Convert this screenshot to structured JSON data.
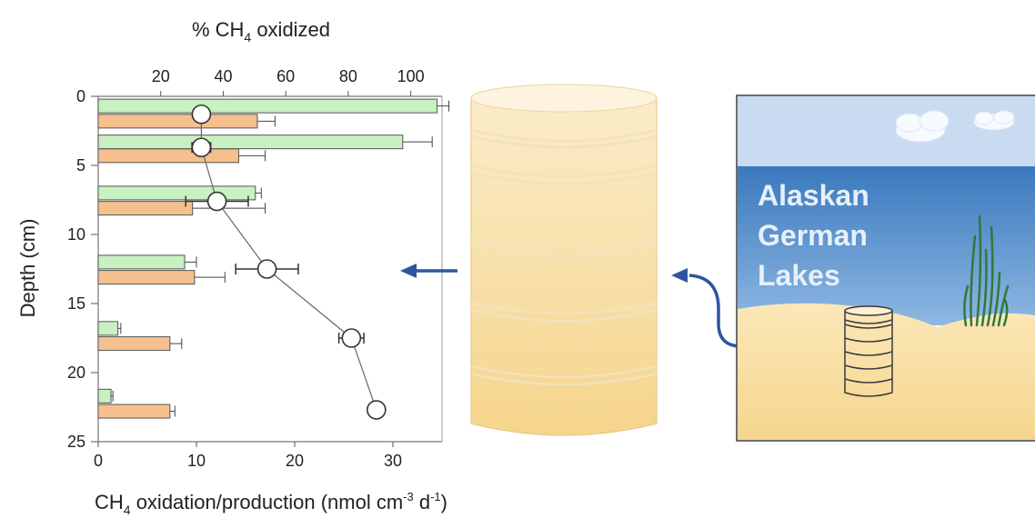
{
  "chart_data": {
    "type": "bar",
    "orientation": "horizontal",
    "top_axis_title_prefix": "% CH",
    "top_axis_title_sub": "4",
    "top_axis_title_suffix": " oxidized",
    "bottom_axis_title_prefix": "CH",
    "bottom_axis_title_sub": "4",
    "bottom_axis_title_mid": " oxidation/production (nmol cm",
    "bottom_axis_title_sup1": "-3",
    "bottom_axis_title_mid2": " d",
    "bottom_axis_title_sup2": "-1",
    "bottom_axis_title_end": ")",
    "ylabel": "Depth (cm)",
    "xlim": [
      0,
      35
    ],
    "ylim": [
      0,
      25
    ],
    "top_xlim": [
      0,
      110
    ],
    "x_ticks": [
      0,
      10,
      20,
      30
    ],
    "top_x_ticks": [
      20,
      40,
      60,
      80,
      100
    ],
    "y_ticks": [
      0,
      5,
      10,
      15,
      20,
      25
    ],
    "series": [
      {
        "color": "#c8f0c0",
        "points": [
          {
            "depth": 0.7,
            "value": 34.5,
            "err": 1.2
          },
          {
            "depth": 3.3,
            "value": 31.0,
            "err": 3.0
          },
          {
            "depth": 7.0,
            "value": 16.0,
            "err": 0.6
          },
          {
            "depth": 12.0,
            "value": 8.8,
            "err": 1.2
          },
          {
            "depth": 16.8,
            "value": 2.0,
            "err": 0.3
          },
          {
            "depth": 21.7,
            "value": 1.3,
            "err": 0.2
          }
        ]
      },
      {
        "color": "#f5c08e",
        "points": [
          {
            "depth": 1.8,
            "value": 16.2,
            "err": 1.8
          },
          {
            "depth": 4.3,
            "value": 14.3,
            "err": 2.7
          },
          {
            "depth": 8.1,
            "value": 9.6,
            "err": 7.4
          },
          {
            "depth": 13.1,
            "value": 9.8,
            "err": 3.1
          },
          {
            "depth": 17.9,
            "value": 7.3,
            "err": 1.2
          },
          {
            "depth": 22.8,
            "value": 7.3,
            "err": 0.5
          }
        ]
      }
    ],
    "percent_line": {
      "points": [
        {
          "depth": 1.3,
          "percent": 33,
          "err": 0
        },
        {
          "depth": 3.7,
          "percent": 33,
          "err": 3
        },
        {
          "depth": 7.6,
          "percent": 38,
          "err": 10
        },
        {
          "depth": 12.5,
          "percent": 54,
          "err": 10
        },
        {
          "depth": 17.5,
          "percent": 81,
          "err": 4
        },
        {
          "depth": 22.7,
          "percent": 89,
          "err": 0
        }
      ]
    }
  },
  "lake": {
    "label_lines": [
      "Alaskan",
      "German",
      "Lakes"
    ]
  }
}
